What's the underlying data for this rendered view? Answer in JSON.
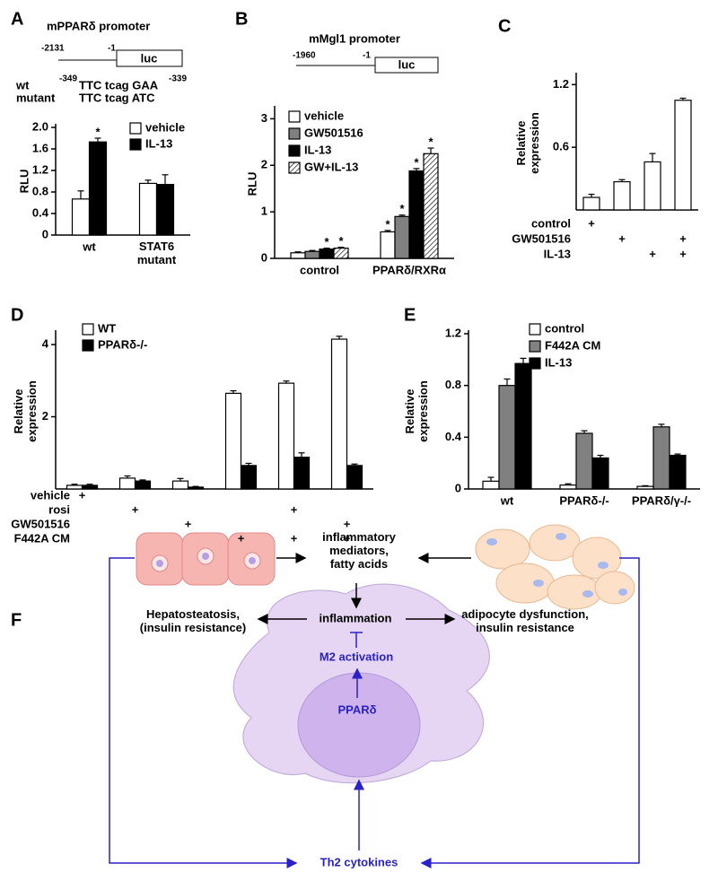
{
  "chart_data": [
    {
      "type": "bar",
      "label": "A",
      "promoter": {
        "name": "mPPARδ promoter",
        "start": "-2131",
        "end": "-1",
        "reporter": "luc"
      },
      "sequences": [
        {
          "name": "wt",
          "start": "-349",
          "text": "TTC tcag GAA",
          "end": "-339"
        },
        {
          "name": "mutant",
          "text": "TTC tcag ATC"
        }
      ],
      "ylabel": "RLU",
      "categories": [
        "wt",
        "STAT6\nmutant"
      ],
      "series": [
        {
          "name": "vehicle",
          "color": "#ffffff",
          "values": [
            0.67,
            0.96
          ],
          "errors": [
            0.15,
            0.06
          ],
          "significant": [
            false,
            false
          ]
        },
        {
          "name": "IL-13",
          "color": "#000000",
          "values": [
            1.73,
            0.94
          ],
          "errors": [
            0.07,
            0.18
          ],
          "significant": [
            true,
            false
          ]
        }
      ],
      "asterisk": "*",
      "ylim": [
        0,
        2
      ],
      "yticks": [
        0,
        0.4,
        0.8,
        1.2,
        1.6,
        {
          "value": 2,
          "label": "2.0"
        }
      ]
    },
    {
      "type": "bar",
      "label": "B",
      "promoter": {
        "name": "mMgl1 promoter",
        "start": "-1960",
        "end": "-1",
        "reporter": "luc"
      },
      "ylabel": "RLU",
      "categories": [
        "control",
        "PPARδ/RXRα"
      ],
      "series": [
        {
          "name": "vehicle",
          "color": "#ffffff",
          "values": [
            0.12,
            0.57
          ],
          "errors": [
            0.02,
            0.03
          ],
          "significant": [
            false,
            true
          ]
        },
        {
          "name": "GW501516",
          "color": "#808080",
          "values": [
            0.15,
            0.9
          ],
          "errors": [
            0.02,
            0.03
          ],
          "significant": [
            false,
            true
          ]
        },
        {
          "name": "IL-13",
          "color": "#000000",
          "values": [
            0.2,
            1.88
          ],
          "errors": [
            0.02,
            0.05
          ],
          "significant": [
            true,
            true
          ]
        },
        {
          "name": "GW+IL-13",
          "pattern": "hatch",
          "values": [
            0.22,
            2.25
          ],
          "errors": [
            0.02,
            0.12
          ],
          "significant": [
            true,
            true
          ]
        }
      ],
      "asterisk": "*",
      "ylim": [
        0,
        3.2
      ],
      "yticks": [
        0,
        1,
        2,
        3
      ]
    },
    {
      "type": "bar",
      "label": "C",
      "ylabel": "Relative\nexpression",
      "categories": [
        null,
        null,
        null,
        null
      ],
      "color": "#ffffff",
      "values": [
        0.12,
        0.27,
        0.46,
        1.05
      ],
      "errors": [
        0.03,
        0.02,
        0.08,
        0.02
      ],
      "conditions": [
        {
          "name": "control",
          "marks": [
            "+",
            null,
            null,
            null
          ]
        },
        {
          "name": "GW501516",
          "marks": [
            null,
            "+",
            null,
            "+"
          ]
        },
        {
          "name": "IL-13",
          "marks": [
            null,
            null,
            "+",
            "+"
          ]
        }
      ],
      "ylim": [
        0,
        1.28
      ],
      "yticks": [
        0.6,
        1.2
      ]
    },
    {
      "type": "bar",
      "label": "D",
      "ylabel": "Relative\nexpression",
      "categories": [
        null,
        null,
        null,
        null,
        null,
        null
      ],
      "series": [
        {
          "name": "WT",
          "color": "#ffffff",
          "values": [
            0.1,
            0.3,
            0.22,
            2.65,
            2.93,
            4.15
          ],
          "errors": [
            0.03,
            0.06,
            0.07,
            0.07,
            0.06,
            0.08
          ]
        },
        {
          "name": "PPARδ-/-",
          "color": "#000000",
          "values": [
            0.1,
            0.22,
            0.05,
            0.65,
            0.88,
            0.65
          ],
          "errors": [
            0.03,
            0.03,
            0.02,
            0.06,
            0.12,
            0.04
          ]
        }
      ],
      "conditions": [
        {
          "name": "vehicle",
          "marks": [
            "+",
            null,
            null,
            null,
            null,
            null
          ]
        },
        {
          "name": "rosi",
          "marks": [
            null,
            "+",
            null,
            null,
            "+",
            null
          ]
        },
        {
          "name": "GW501516",
          "marks": [
            null,
            null,
            "+",
            null,
            null,
            "+"
          ]
        },
        {
          "name": "F442A CM",
          "marks": [
            null,
            null,
            null,
            "+",
            "+",
            "+"
          ]
        }
      ],
      "ylim": [
        0,
        4.3
      ],
      "yticks": [
        2,
        4
      ]
    },
    {
      "type": "bar",
      "label": "E",
      "ylabel": "Relative\nexpression",
      "categories": [
        "wt",
        "PPARδ-/-",
        "PPARδ/γ-/-"
      ],
      "series": [
        {
          "name": "control",
          "color": "#ffffff",
          "values": [
            0.06,
            0.03,
            0.02
          ],
          "errors": [
            0.03,
            0.01,
            0.005
          ]
        },
        {
          "name": "F442A CM",
          "color": "#808080",
          "values": [
            0.8,
            0.43,
            0.48
          ],
          "errors": [
            0.05,
            0.02,
            0.02
          ]
        },
        {
          "name": "IL-13",
          "color": "#000000",
          "values": [
            0.97,
            0.24,
            0.26
          ],
          "errors": [
            0.04,
            0.02,
            0.01
          ]
        }
      ],
      "ylim": [
        0,
        1.2
      ],
      "yticks": [
        0,
        0.4,
        0.8,
        1.2
      ]
    }
  ],
  "diagram": {
    "label": "F",
    "mediators": "inflammatory\nmediators,\nfatty acids",
    "inflammation": "inflammation",
    "liver_effect": "Hepatosteatosis,\n(insulin resistance)",
    "adipose_effect": "adipocyte dysfunction,\ninsulin resistance",
    "m2": "M2 activation",
    "ppar": "PPARδ",
    "cytokines": "Th2 cytokines"
  }
}
